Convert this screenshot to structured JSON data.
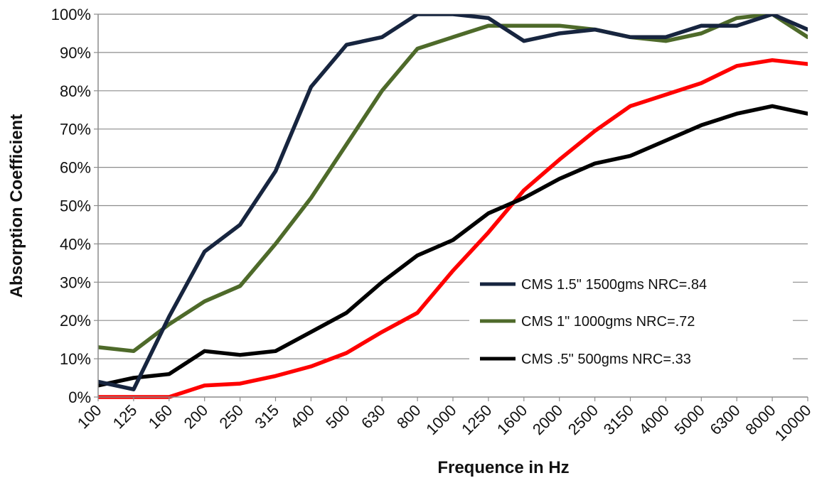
{
  "chart_data": {
    "type": "line",
    "title": "",
    "xlabel": "Frequence in Hz",
    "ylabel": "Absorption Coefficient",
    "categories": [
      "100",
      "125",
      "160",
      "200",
      "250",
      "315",
      "400",
      "500",
      "630",
      "800",
      "1000",
      "1250",
      "1600",
      "2000",
      "2500",
      "3150",
      "4000",
      "5000",
      "6300",
      "8000",
      "10000"
    ],
    "y_ticks": [
      "0%",
      "10%",
      "20%",
      "30%",
      "40%",
      "50%",
      "60%",
      "70%",
      "80%",
      "90%",
      "100%"
    ],
    "ylim": [
      0,
      100
    ],
    "grid": true,
    "legend_position": "bottom-right",
    "series": [
      {
        "name": "CMS 1.5\" 1500gms  NRC=.84",
        "color": "#17253f",
        "in_legend": true,
        "values": [
          4,
          2,
          21,
          38,
          45,
          59,
          81,
          92,
          94,
          100,
          100,
          99,
          93,
          95,
          96,
          94,
          94,
          97,
          97,
          100,
          96
        ]
      },
      {
        "name": "CMS 1\" 1000gms  NRC=.72",
        "color": "#4e6a2a",
        "in_legend": true,
        "values": [
          13,
          12,
          19,
          25,
          29,
          40,
          52,
          66,
          80,
          91,
          94,
          97,
          97,
          97,
          96,
          94,
          93,
          95,
          99,
          100,
          94
        ]
      },
      {
        "name": "CMS .5\"  500gms  NRC=.33",
        "color": "#000000",
        "in_legend": true,
        "values": [
          3,
          5,
          6,
          12,
          11,
          12,
          17,
          22,
          30,
          37,
          41,
          48,
          52,
          57,
          61,
          63,
          67,
          71,
          74,
          76,
          74
        ]
      },
      {
        "name": "",
        "color": "#ff0000",
        "in_legend": false,
        "values": [
          0,
          0,
          0,
          3,
          3.5,
          5.5,
          8,
          11.5,
          17,
          22,
          33,
          43,
          54,
          62,
          69.5,
          76,
          79,
          82,
          86.5,
          88,
          87
        ]
      }
    ]
  }
}
